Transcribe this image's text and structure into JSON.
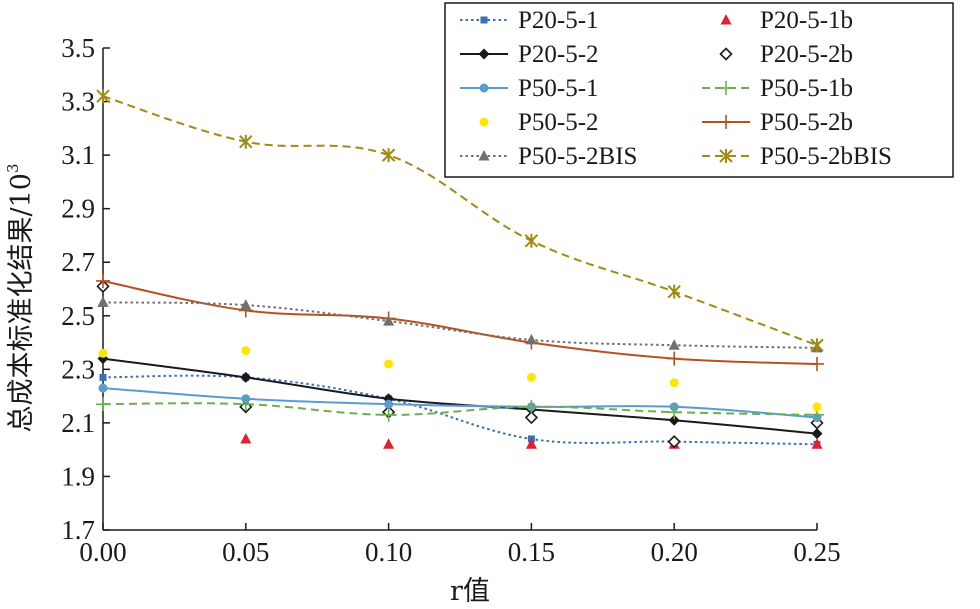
{
  "chart_data": {
    "type": "line",
    "xlabel": "r值",
    "ylabel_main": "总成本标准化结果/10",
    "ylabel_sup": "3",
    "x": [
      0.0,
      0.05,
      0.1,
      0.15,
      0.2,
      0.25
    ],
    "x_tick_labels": [
      "0.00",
      "0.05",
      "0.10",
      "0.15",
      "0.20",
      "0.25"
    ],
    "y_tick_labels": [
      "1.7",
      "1.9",
      "2.1",
      "2.3",
      "2.5",
      "2.7",
      "2.9",
      "3.1",
      "3.3",
      "3.5"
    ],
    "xlim": [
      0,
      0.25
    ],
    "ylim": [
      1.7,
      3.5
    ],
    "legend_position": "top-right",
    "series": [
      {
        "name": "P20-5-1",
        "values": [
          2.27,
          2.27,
          2.19,
          2.04,
          2.03,
          2.02
        ],
        "color": "#3b6fb5",
        "dash": "dotted",
        "marker": "square",
        "line": true
      },
      {
        "name": "P20-5-1b",
        "values": [
          2.55,
          2.04,
          2.02,
          2.02,
          2.02,
          2.02
        ],
        "color": "#e0202e",
        "marker": "triangle",
        "line": false
      },
      {
        "name": "P20-5-2",
        "values": [
          2.34,
          2.27,
          2.19,
          2.15,
          2.11,
          2.06
        ],
        "color": "#1a1a1a",
        "dash": "solid",
        "marker": "diamond",
        "line": true
      },
      {
        "name": "P20-5-2b",
        "values": [
          2.61,
          2.16,
          2.14,
          2.12,
          2.03,
          2.1
        ],
        "color": "#1a1a1a",
        "marker": "diamond-open",
        "line": false
      },
      {
        "name": "P50-5-1",
        "values": [
          2.23,
          2.19,
          2.17,
          2.16,
          2.16,
          2.12
        ],
        "color": "#5a9bd0",
        "dash": "solid",
        "marker": "circle",
        "line": true
      },
      {
        "name": "P50-5-1b",
        "values": [
          2.17,
          2.17,
          2.13,
          2.16,
          2.14,
          2.13
        ],
        "color": "#6ab04c",
        "dash": "dashed",
        "marker": "plus",
        "line": true
      },
      {
        "name": "P50-5-2",
        "values": [
          2.36,
          2.37,
          2.32,
          2.27,
          2.25,
          2.16
        ],
        "color": "#ffe600",
        "marker": "circle",
        "line": false
      },
      {
        "name": "P50-5-2b",
        "values": [
          2.63,
          2.52,
          2.49,
          2.4,
          2.34,
          2.32
        ],
        "color": "#b5521d",
        "dash": "solid",
        "marker": "plus",
        "line": true
      },
      {
        "name": "P50-5-2BIS",
        "values": [
          2.55,
          2.54,
          2.48,
          2.41,
          2.39,
          2.38
        ],
        "color": "#707070",
        "dash": "dotted",
        "marker": "triangle",
        "line": true
      },
      {
        "name": "P50-5-2bBIS",
        "values": [
          3.32,
          3.15,
          3.1,
          2.78,
          2.59,
          2.39
        ],
        "color": "#a08a10",
        "dash": "dashed",
        "marker": "asterisk",
        "line": true
      }
    ]
  }
}
